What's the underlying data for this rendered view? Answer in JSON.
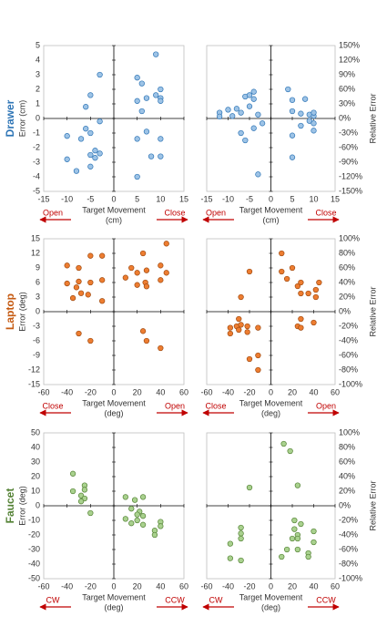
{
  "chart_data": [
    {
      "type": "scatter",
      "row_label": "Drawer",
      "label_color": "#2e75b6",
      "ylabel": "Error (cm)",
      "xlabel": "Target Movement",
      "xunit": "(cm)",
      "dir_left": "Open",
      "dir_right": "Close",
      "color": "#9dc3e6",
      "edge_color": "#2e75b6",
      "x": [
        -3,
        -5,
        -6,
        -3,
        -10,
        -6,
        -7,
        -5,
        -4,
        -3,
        -5,
        -4,
        -10,
        -8,
        -5,
        5,
        6,
        9,
        5,
        7,
        9,
        10,
        10,
        10,
        6,
        5,
        7,
        10,
        8,
        10,
        5
      ],
      "y": [
        3.0,
        1.6,
        0.8,
        -0.2,
        -1.2,
        -0.7,
        -1.4,
        -1.0,
        -2.2,
        -2.4,
        -2.5,
        -2.7,
        -2.8,
        -3.6,
        -3.3,
        2.8,
        2.4,
        4.4,
        1.2,
        1.4,
        1.6,
        2.0,
        1.4,
        1.2,
        0.5,
        -1.4,
        -0.9,
        -1.4,
        -2.6,
        -2.6,
        -4.0
      ],
      "xlim": [
        -15,
        15
      ],
      "ylim": [
        -5,
        5
      ],
      "xticks": [
        -15,
        -10,
        -5,
        0,
        5,
        10,
        15
      ],
      "yticks": [
        -5,
        -4,
        -3,
        -2,
        -1,
        0,
        1,
        2,
        3,
        4,
        5
      ]
    },
    {
      "type": "scatter",
      "ylabel": "Relative Error",
      "y_axis_side": "right",
      "xlabel": "Target Movement",
      "xunit": "(cm)",
      "dir_left": "Open",
      "dir_right": "Close",
      "color": "#9dc3e6",
      "edge_color": "#2e75b6",
      "x": [
        -12,
        -12,
        -10,
        -9,
        -8,
        -7,
        -6,
        -5,
        -4,
        -4,
        -5,
        -7,
        -6,
        -4,
        -3,
        -2,
        -3,
        4,
        8,
        5,
        5,
        7,
        9,
        10,
        10,
        9,
        10,
        7,
        10,
        5,
        5
      ],
      "y": [
        12,
        4,
        18,
        5,
        20,
        12,
        45,
        48,
        55,
        40,
        25,
        -30,
        -45,
        -20,
        8,
        -10,
        -115,
        60,
        40,
        38,
        15,
        10,
        8,
        5,
        12,
        -5,
        -10,
        -15,
        -25,
        -35,
        -80
      ],
      "xlim": [
        -15,
        15
      ],
      "ylim": [
        -150,
        150
      ],
      "xticks": [
        -15,
        -10,
        -5,
        0,
        5,
        10,
        15
      ],
      "yticks": [
        {
          "value": -150,
          "label": "-150%"
        },
        {
          "value": -120,
          "label": "-120%"
        },
        {
          "value": -90,
          "label": "-90%"
        },
        {
          "value": -60,
          "label": "-60%"
        },
        {
          "value": -30,
          "label": "-30%"
        },
        {
          "value": 0,
          "label": "0%"
        },
        {
          "value": 30,
          "label": "30%"
        },
        {
          "value": 60,
          "label": "60%"
        },
        {
          "value": 90,
          "label": "90%"
        },
        {
          "value": 120,
          "label": "120%"
        },
        {
          "value": 150,
          "label": "150%"
        }
      ]
    },
    {
      "type": "scatter",
      "row_label": "Laptop",
      "label_color": "#c55a11",
      "ylabel": "Error (deg)",
      "xlabel": "Target Movement",
      "xunit": "(deg)",
      "dir_left": "Close",
      "dir_right": "Open",
      "color": "#ed7d31",
      "edge_color": "#a04a10",
      "x": [
        -40,
        -30,
        -20,
        -10,
        -40,
        -30,
        -32,
        -20,
        -10,
        -28,
        -35,
        -22,
        -10,
        -30,
        -20,
        15,
        25,
        45,
        40,
        10,
        20,
        28,
        45,
        20,
        27,
        28,
        40,
        25,
        28,
        40
      ],
      "y": [
        9.5,
        9,
        11.5,
        11.5,
        5.8,
        6.2,
        5,
        6,
        6.5,
        3.8,
        2.8,
        3.5,
        2.2,
        -4.5,
        -6,
        9,
        12,
        14,
        9.5,
        7,
        8,
        8.5,
        8,
        5.5,
        6,
        5.2,
        6.5,
        -4,
        -6,
        -7.5
      ],
      "xlim": [
        -60,
        60
      ],
      "ylim": [
        -15,
        15
      ],
      "xticks": [
        -60,
        -40,
        -20,
        0,
        20,
        40,
        60
      ],
      "yticks": [
        -15,
        -12,
        -9,
        -6,
        -3,
        0,
        3,
        6,
        9,
        12,
        15
      ]
    },
    {
      "type": "scatter",
      "ylabel": "Relative Error",
      "y_axis_side": "right",
      "xlabel": "Target Movement",
      "xunit": "(deg)",
      "dir_left": "Close",
      "dir_right": "Open",
      "color": "#ed7d31",
      "edge_color": "#a04a10",
      "x": [
        -20,
        -28,
        -30,
        -32,
        -28,
        -38,
        -38,
        -30,
        -22,
        -12,
        -22,
        -20,
        -12,
        -12,
        10,
        10,
        15,
        20,
        25,
        28,
        28,
        35,
        42,
        42,
        45,
        28,
        25,
        28,
        40
      ],
      "y": [
        55,
        20,
        -10,
        -20,
        -18,
        -22,
        -30,
        -25,
        -20,
        -22,
        -28,
        -65,
        -60,
        -80,
        80,
        55,
        45,
        60,
        35,
        40,
        25,
        25,
        20,
        30,
        40,
        -10,
        -20,
        -22,
        -15
      ],
      "xlim": [
        -60,
        60
      ],
      "ylim": [
        -100,
        100
      ],
      "xticks": [
        -60,
        -40,
        -20,
        0,
        20,
        40,
        60
      ],
      "yticks": [
        {
          "value": -100,
          "label": "-100%"
        },
        {
          "value": -80,
          "label": "-80%"
        },
        {
          "value": -60,
          "label": "-60%"
        },
        {
          "value": -40,
          "label": "-40%"
        },
        {
          "value": -20,
          "label": "-20%"
        },
        {
          "value": 0,
          "label": "0%"
        },
        {
          "value": 20,
          "label": "20%"
        },
        {
          "value": 40,
          "label": "40%"
        },
        {
          "value": 60,
          "label": "60%"
        },
        {
          "value": 80,
          "label": "80%"
        },
        {
          "value": 100,
          "label": "100%"
        }
      ]
    },
    {
      "type": "scatter",
      "row_label": "Faucet",
      "label_color": "#548235",
      "ylabel": "Error (deg)",
      "xlabel": "Target Movement",
      "xunit": "(deg)",
      "dir_left": "CW",
      "dir_right": "CCW",
      "color": "#a9d18e",
      "edge_color": "#548235",
      "x": [
        -35,
        -25,
        -25,
        -35,
        -28,
        -25,
        -28,
        -20,
        10,
        18,
        25,
        15,
        22,
        20,
        25,
        10,
        20,
        25,
        15,
        35,
        35,
        40,
        40
      ],
      "y": [
        22,
        14,
        11,
        10,
        7,
        5,
        3,
        -5,
        6,
        4,
        6,
        -2,
        -4,
        -6,
        -7,
        -9,
        -10,
        -13,
        -12,
        -17,
        -20,
        -11,
        -14
      ],
      "xlim": [
        -60,
        60
      ],
      "ylim": [
        -50,
        50
      ],
      "xticks": [
        -60,
        -40,
        -20,
        0,
        20,
        40,
        60
      ],
      "yticks": [
        -50,
        -40,
        -30,
        -20,
        -10,
        0,
        10,
        20,
        30,
        40,
        50
      ]
    },
    {
      "type": "scatter",
      "ylabel": "Relative Error",
      "y_axis_side": "right",
      "xlabel": "Target Movement",
      "xunit": "(deg)",
      "dir_left": "CW",
      "dir_right": "CCW",
      "color": "#a9d18e",
      "edge_color": "#548235",
      "x": [
        -20,
        -28,
        -28,
        -38,
        -28,
        -38,
        -28,
        12,
        18,
        25,
        10,
        15,
        20,
        25,
        25,
        22,
        28,
        22,
        25,
        35,
        35,
        40,
        40
      ],
      "y": [
        25,
        -30,
        -38,
        -52,
        -45,
        -72,
        -75,
        85,
        75,
        28,
        -70,
        -60,
        -45,
        -40,
        -60,
        -32,
        -25,
        -20,
        -45,
        -65,
        -70,
        -35,
        -50
      ],
      "xlim": [
        -60,
        60
      ],
      "ylim": [
        -100,
        100
      ],
      "xticks": [
        -60,
        -40,
        -20,
        0,
        20,
        40,
        60
      ],
      "yticks": [
        {
          "value": -100,
          "label": "-100%"
        },
        {
          "value": -80,
          "label": "-80%"
        },
        {
          "value": -60,
          "label": "-60%"
        },
        {
          "value": -40,
          "label": "-40%"
        },
        {
          "value": -20,
          "label": "-20%"
        },
        {
          "value": 0,
          "label": "0%"
        },
        {
          "value": 20,
          "label": "20%"
        },
        {
          "value": 40,
          "label": "40%"
        },
        {
          "value": 60,
          "label": "60%"
        },
        {
          "value": 80,
          "label": "80%"
        },
        {
          "value": 100,
          "label": "100%"
        }
      ]
    }
  ]
}
